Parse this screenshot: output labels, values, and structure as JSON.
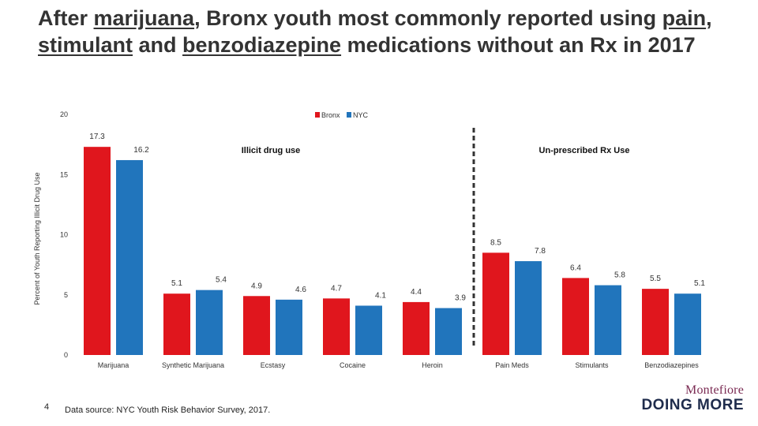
{
  "title": {
    "p1": "After ",
    "u1": "marijuana",
    "p2": ", Bronx youth most commonly reported using ",
    "u2": "pain",
    "p3": ", ",
    "u3": "stimulant",
    "p4": " and ",
    "u4": "benzodiazepine",
    "p5": " medications without an Rx in 2017"
  },
  "colors": {
    "bronx": "#e0161d",
    "nyc": "#2175bc",
    "divider": "#333333"
  },
  "chart_data": {
    "type": "bar",
    "ylabel": "Percent of Youth Reporting Illicit Drug Use",
    "ylim": [
      0,
      20
    ],
    "yticks": [
      0,
      5,
      10,
      15,
      20
    ],
    "categories": [
      "Marijuana",
      "Synthetic Marijuana",
      "Ecstasy",
      "Cocaine",
      "Heroin",
      "Pain Meds",
      "Stimulants",
      "Benzodiazepines"
    ],
    "series": [
      {
        "name": "Bronx",
        "values": [
          17.3,
          5.1,
          4.9,
          4.7,
          4.4,
          8.5,
          6.4,
          5.5
        ],
        "labels": [
          "17.3",
          "5.1",
          "4.9",
          "4.7",
          "4.4",
          "8.5",
          "6.4",
          "5.5"
        ]
      },
      {
        "name": "NYC",
        "values": [
          16.2,
          5.4,
          4.6,
          4.1,
          3.9,
          7.8,
          5.8,
          5.1
        ],
        "labels": [
          "16.2",
          "5.4",
          "4.6",
          "4.1",
          "3.9",
          "7.8",
          "5.8",
          "5.1"
        ]
      }
    ],
    "annotations": [
      "Illicit drug use",
      "Un-prescribed Rx Use"
    ],
    "legend_position": "top"
  },
  "footer": {
    "page_number": "4",
    "source": "Data source: NYC Youth Risk Behavior Survey, 2017."
  },
  "logo": {
    "top": "Montefiore",
    "bottom": "DOING MORE"
  }
}
